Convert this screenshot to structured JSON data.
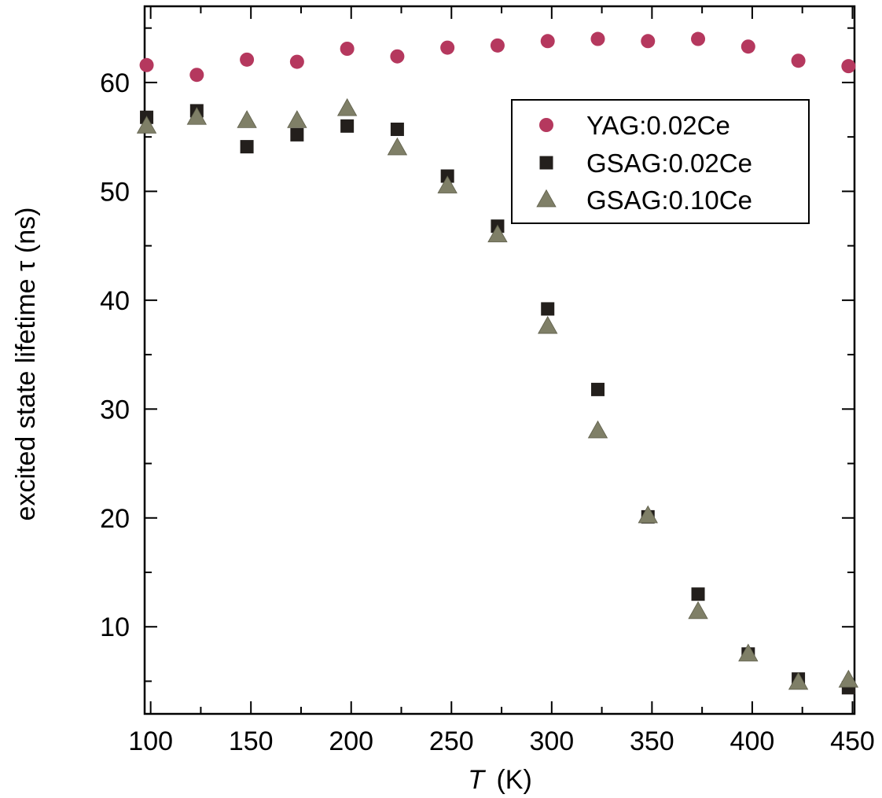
{
  "chart_data": {
    "type": "scatter",
    "xlabel": {
      "symbol": "T",
      "unit": "(K)"
    },
    "ylabel": "excited state lifetime τ (ns)",
    "xlim": [
      97,
      451
    ],
    "ylim": [
      2,
      67
    ],
    "x_ticks": [
      "100",
      "150",
      "200",
      "250",
      "300",
      "350",
      "400",
      "450"
    ],
    "y_ticks": [
      "10",
      "20",
      "30",
      "40",
      "50",
      "60"
    ],
    "grid": false,
    "legend_position": "top-right",
    "series": [
      {
        "name": "YAG:0.02Ce",
        "marker": "circle",
        "color": "#b5385e",
        "x": [
          98,
          123,
          148,
          173,
          198,
          223,
          248,
          273,
          298,
          323,
          348,
          373,
          398,
          423,
          448
        ],
        "y": [
          61.6,
          60.7,
          62.1,
          61.9,
          63.1,
          62.4,
          63.2,
          63.4,
          63.8,
          64.0,
          63.8,
          64.0,
          63.3,
          62.0,
          61.5
        ]
      },
      {
        "name": "GSAG:0.02Ce",
        "marker": "square",
        "color": "#231f1c",
        "x": [
          98,
          123,
          148,
          173,
          198,
          223,
          248,
          273,
          298,
          323,
          348,
          373,
          398,
          423,
          448
        ],
        "y": [
          56.8,
          57.4,
          54.1,
          55.2,
          56.0,
          55.7,
          51.4,
          46.8,
          39.2,
          31.8,
          20.1,
          13.0,
          7.5,
          5.2,
          4.4
        ]
      },
      {
        "name": "GSAG:0.10Ce",
        "marker": "triangle",
        "color": "#7f7f67",
        "x": [
          98,
          123,
          148,
          173,
          198,
          223,
          248,
          273,
          298,
          323,
          348,
          373,
          398,
          423,
          448
        ],
        "y": [
          56.0,
          56.8,
          56.5,
          56.5,
          57.6,
          54.0,
          50.5,
          46.0,
          37.6,
          28.0,
          20.2,
          11.4,
          7.5,
          4.9,
          5.1
        ]
      }
    ]
  }
}
